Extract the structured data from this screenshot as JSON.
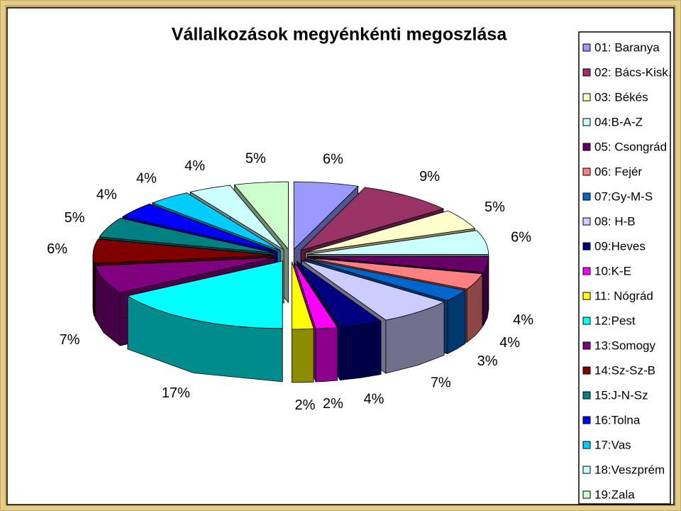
{
  "chart_data": {
    "type": "pie",
    "title": "Vállalkozások megyénkénti megoszlása",
    "categories": [
      "01: Baranya",
      "02: Bács-Kisk.",
      "03: Békés",
      "04:B-A-Z",
      "05: Csongrád",
      "06: Fejér",
      "07:Gy-M-S",
      "08: H-B",
      "09:Heves",
      "10:K-E",
      "11: Nógrád",
      "12:Pest",
      "13:Somogy",
      "14:Sz-Sz-B",
      "15:J-N-Sz",
      "16:Tolna",
      "17:Vas",
      "18:Veszprém",
      "19:Zala"
    ],
    "values": [
      6,
      9,
      5,
      6,
      4,
      4,
      3,
      7,
      4,
      2,
      2,
      17,
      7,
      6,
      5,
      4,
      4,
      4,
      5
    ],
    "value_labels": [
      "6%",
      "9%",
      "5%",
      "6%",
      "4%",
      "4%",
      "3%",
      "7%",
      "4%",
      "2%",
      "2%",
      "17%",
      "7%",
      "6%",
      "5%",
      "4%",
      "4%",
      "4%",
      "5%"
    ],
    "colors": [
      "#9999FF",
      "#993366",
      "#FFFFCC",
      "#CCFFFF",
      "#660066",
      "#FF8080",
      "#0066CC",
      "#CCCCFF",
      "#000080",
      "#FF00FF",
      "#FFFF00",
      "#00FFFF",
      "#800080",
      "#800000",
      "#008080",
      "#0000FF",
      "#00CCFF",
      "#CCFFFF",
      "#CCFFCC"
    ],
    "legend": "right"
  }
}
